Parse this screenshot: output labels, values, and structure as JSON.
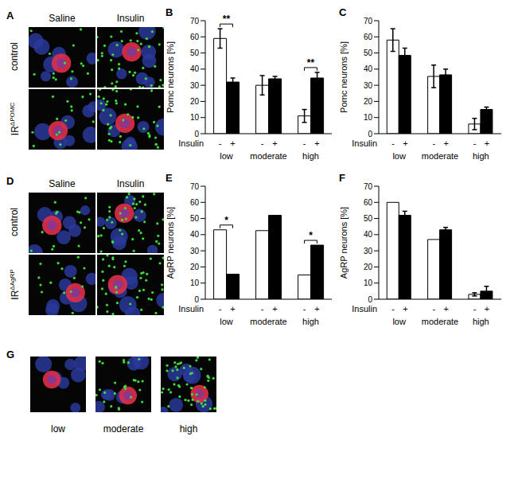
{
  "figure": {
    "A": {
      "label": "A",
      "columns": [
        "Saline",
        "Insulin"
      ],
      "rows": [
        {
          "base": "control",
          "sup": ""
        },
        {
          "base": "IR",
          "sup": "ΔPOMC"
        }
      ]
    },
    "D": {
      "label": "D",
      "columns": [
        "Saline",
        "Insulin"
      ],
      "rows": [
        {
          "base": "control",
          "sup": ""
        },
        {
          "base": "IR",
          "sup": "ΔAgRP"
        }
      ]
    },
    "G": {
      "label": "G",
      "images": [
        "low",
        "moderate",
        "high"
      ]
    }
  },
  "chart_data": [
    {
      "type": "bar",
      "title": "B",
      "y_label": "Pomc neurons [%]",
      "series_label": "Insulin",
      "categories": [
        "low",
        "moderate",
        "high"
      ],
      "series": [
        {
          "name": "-",
          "color": "#ffffff",
          "values": [
            59,
            30,
            11
          ],
          "errors": [
            6,
            6,
            4
          ]
        },
        {
          "name": "+",
          "color": "#000000",
          "values": [
            32,
            34,
            34.5
          ],
          "errors": [
            2.5,
            1.5,
            3.5
          ]
        }
      ],
      "ylim": [
        0,
        70
      ],
      "yticks": [
        0,
        10,
        20,
        30,
        40,
        50,
        60,
        70
      ],
      "annotations": [
        {
          "category": "low",
          "text": "**"
        },
        {
          "category": "high",
          "text": "**"
        }
      ]
    },
    {
      "type": "bar",
      "title": "C",
      "y_label": "Pomc neurons [%]",
      "series_label": "Insulin",
      "categories": [
        "low",
        "moderate",
        "high"
      ],
      "series": [
        {
          "name": "-",
          "color": "#ffffff",
          "values": [
            58,
            35.5,
            6
          ],
          "errors": [
            7,
            7,
            3.5
          ]
        },
        {
          "name": "+",
          "color": "#000000",
          "values": [
            48.5,
            36.5,
            15
          ],
          "errors": [
            4.5,
            3.5,
            1.5
          ]
        }
      ],
      "ylim": [
        0,
        70
      ],
      "yticks": [
        0,
        10,
        20,
        30,
        40,
        50,
        60,
        70
      ],
      "annotations": []
    },
    {
      "type": "bar",
      "title": "E",
      "y_label": "AgRP neurons [%]",
      "series_label": "Insulin",
      "categories": [
        "low",
        "moderate",
        "high"
      ],
      "series": [
        {
          "name": "-",
          "color": "#ffffff",
          "values": [
            43,
            42.5,
            15
          ]
        },
        {
          "name": "+",
          "color": "#000000",
          "values": [
            15.5,
            52,
            33.5
          ]
        }
      ],
      "ylim": [
        0,
        70
      ],
      "yticks": [
        0,
        10,
        20,
        30,
        40,
        50,
        60,
        70
      ],
      "annotations": [
        {
          "category": "low",
          "text": "*"
        },
        {
          "category": "high",
          "text": "*"
        }
      ]
    },
    {
      "type": "bar",
      "title": "F",
      "y_label": "AgRP neurons [%]",
      "series_label": "Insulin",
      "categories": [
        "low",
        "moderate",
        "high"
      ],
      "series": [
        {
          "name": "-",
          "color": "#ffffff",
          "values": [
            60,
            37,
            3
          ],
          "errors": [
            null,
            null,
            1
          ]
        },
        {
          "name": "+",
          "color": "#000000",
          "values": [
            52,
            43,
            5
          ],
          "errors": [
            2.5,
            1.5,
            3
          ]
        }
      ],
      "ylim": [
        0,
        70
      ],
      "yticks": [
        0,
        10,
        20,
        30,
        40,
        50,
        60,
        70
      ],
      "annotations": []
    }
  ]
}
